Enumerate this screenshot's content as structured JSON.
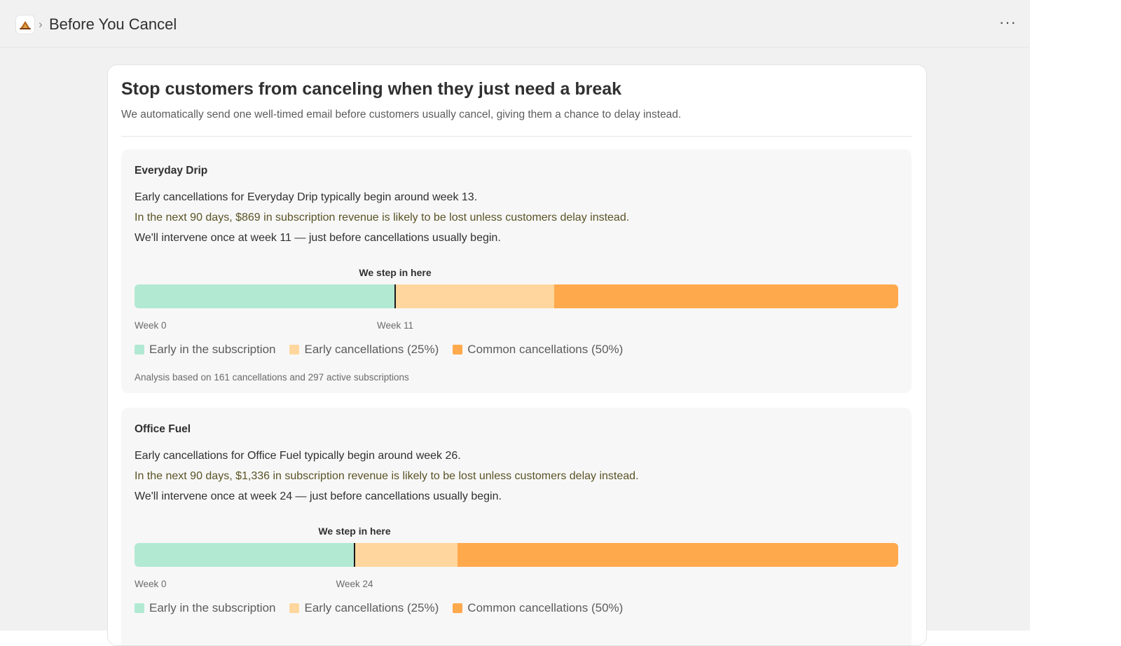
{
  "header": {
    "app_icon": "app-logo-icon",
    "separator": "›",
    "title": "Before You Cancel",
    "more_label": "···"
  },
  "intro": {
    "title": "Stop customers from canceling when they just need a break",
    "description": "We automatically send one well-timed email before customers usually cancel, giving them a chance to delay instead."
  },
  "colors": {
    "early": "#b2e9d3",
    "early_cancellations": "#ffd79e",
    "common_cancellations": "#ffa94d"
  },
  "plans": [
    {
      "name": "Everyday Drip",
      "line1": "Early cancellations for Everyday Drip typically begin around week 13.",
      "line2": "In the next 90 days, $869 in subscription revenue is likely to be lost unless customers delay instead.",
      "line3": "We'll intervene once at week 11 — just before cancellations usually begin.",
      "step_label": "We step in here",
      "start_label": "Week 0",
      "intervene_label": "Week 11",
      "intervene_fraction": 0.341,
      "common_start_fraction": 0.55,
      "legend": [
        "Early in the subscription",
        "Early cancellations (25%)",
        "Common cancellations (50%)"
      ],
      "analysis": "Analysis based on 161 cancellations and 297 active subscriptions"
    },
    {
      "name": "Office Fuel",
      "line1": "Early cancellations for Office Fuel typically begin around week 26.",
      "line2": "In the next 90 days, $1,336 in subscription revenue is likely to be lost unless customers delay instead.",
      "line3": "We'll intervene once at week 24 — just before cancellations usually begin.",
      "step_label": "We step in here",
      "start_label": "Week 0",
      "intervene_label": "Week 24",
      "intervene_fraction": 0.288,
      "common_start_fraction": 0.423,
      "legend": [
        "Early in the subscription",
        "Early cancellations (25%)",
        "Common cancellations (50%)"
      ],
      "analysis": ""
    }
  ]
}
